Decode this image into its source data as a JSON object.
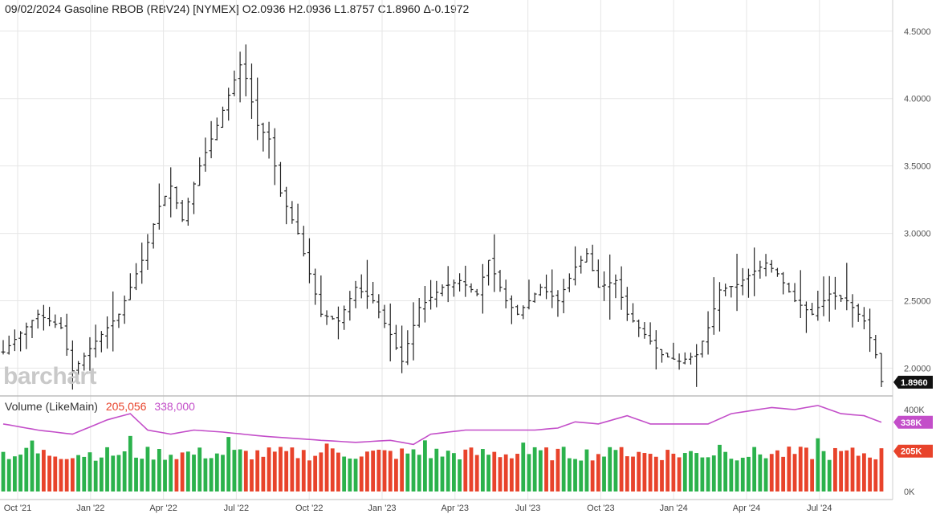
{
  "header": {
    "date": "09/02/2024",
    "instrument": "Gasoline RBOB (RBV24) [NYMEX]",
    "open": "O2.0936",
    "high": "H2.0936",
    "low": "L1.8757",
    "close": "C1.8960",
    "change": "Δ-0.1972"
  },
  "brand": "barchart",
  "volume_legend": {
    "label": "Volume",
    "mode": "(LikeMain)",
    "volume_value": "205,056",
    "ma_value": "338,000"
  },
  "colors": {
    "price_bar": "#222222",
    "grid": "#e6e6e6",
    "volume_up": "#2bb24c",
    "volume_down": "#e8432b",
    "volume_ma": "#c34ec9",
    "last_price_badge": "#111111"
  },
  "chart_data": [
    {
      "type": "ohlc",
      "title": "09/02/2024 Gasoline RBOB (RBV24) [NYMEX]",
      "interval": "weekly",
      "ylim": [
        1.8,
        4.6
      ],
      "y_ticks": [
        "4.5000",
        "4.0000",
        "3.5000",
        "3.0000",
        "2.5000",
        "2.0000"
      ],
      "x_ticks": [
        "Oct '21",
        "Jan '22",
        "Apr '22",
        "Jul '22",
        "Oct '22",
        "Jan '23",
        "Apr '23",
        "Jul '23",
        "Oct '23",
        "Jan '24",
        "Apr '24",
        "Jul '24"
      ],
      "last_price_label": "1.8960",
      "anchors": [
        [
          0,
          2.12
        ],
        [
          6,
          2.4
        ],
        [
          10,
          2.3
        ],
        [
          12,
          1.98
        ],
        [
          16,
          2.2
        ],
        [
          20,
          2.4
        ],
        [
          24,
          2.8
        ],
        [
          27,
          3.2
        ],
        [
          29,
          3.35
        ],
        [
          31,
          3.1
        ],
        [
          34,
          3.5
        ],
        [
          37,
          3.8
        ],
        [
          41,
          4.25
        ],
        [
          42,
          4.15
        ],
        [
          44,
          3.8
        ],
        [
          46,
          3.7
        ],
        [
          48,
          3.3
        ],
        [
          51,
          3.0
        ],
        [
          53,
          2.7
        ],
        [
          55,
          2.4
        ],
        [
          58,
          2.35
        ],
        [
          61,
          2.6
        ],
        [
          64,
          2.5
        ],
        [
          67,
          2.25
        ],
        [
          69,
          2.05
        ],
        [
          72,
          2.45
        ],
        [
          76,
          2.6
        ],
        [
          79,
          2.65
        ],
        [
          82,
          2.55
        ],
        [
          84,
          2.8
        ],
        [
          87,
          2.5
        ],
        [
          89,
          2.4
        ],
        [
          93,
          2.6
        ],
        [
          96,
          2.5
        ],
        [
          99,
          2.75
        ],
        [
          101,
          2.85
        ],
        [
          103,
          2.6
        ],
        [
          106,
          2.65
        ],
        [
          108,
          2.4
        ],
        [
          111,
          2.25
        ],
        [
          114,
          2.1
        ],
        [
          117,
          2.05
        ],
        [
          120,
          2.1
        ],
        [
          122,
          2.3
        ],
        [
          124,
          2.58
        ],
        [
          127,
          2.62
        ],
        [
          130,
          2.72
        ],
        [
          132,
          2.78
        ],
        [
          134,
          2.7
        ],
        [
          137,
          2.5
        ],
        [
          140,
          2.4
        ],
        [
          143,
          2.55
        ],
        [
          146,
          2.5
        ],
        [
          149,
          2.35
        ],
        [
          151,
          2.1
        ],
        [
          152,
          1.9
        ]
      ],
      "volume_axis": {
        "ticks": [
          "400K",
          "0K"
        ],
        "volume_badge": "205K",
        "ma_badge": "338K"
      },
      "volume_ma_anchors": [
        [
          0,
          330
        ],
        [
          6,
          300
        ],
        [
          12,
          280
        ],
        [
          18,
          350
        ],
        [
          22,
          380
        ],
        [
          25,
          300
        ],
        [
          29,
          280
        ],
        [
          33,
          300
        ],
        [
          38,
          290
        ],
        [
          45,
          270
        ],
        [
          55,
          250
        ],
        [
          61,
          240
        ],
        [
          67,
          250
        ],
        [
          71,
          230
        ],
        [
          74,
          280
        ],
        [
          80,
          300
        ],
        [
          86,
          300
        ],
        [
          92,
          300
        ],
        [
          96,
          310
        ],
        [
          99,
          340
        ],
        [
          103,
          330
        ],
        [
          108,
          370
        ],
        [
          112,
          330
        ],
        [
          118,
          330
        ],
        [
          122,
          330
        ],
        [
          126,
          380
        ],
        [
          133,
          410
        ],
        [
          137,
          400
        ],
        [
          141,
          420
        ],
        [
          145,
          380
        ],
        [
          149,
          370
        ],
        [
          152,
          338
        ]
      ]
    }
  ]
}
